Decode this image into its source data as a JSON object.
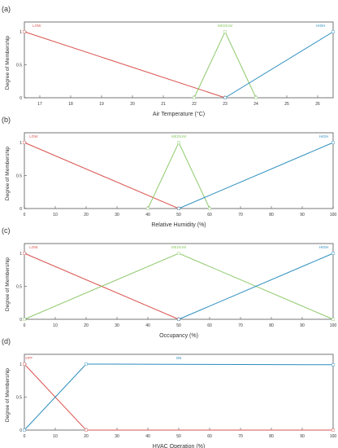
{
  "colors": {
    "low": "#d9534f",
    "medium": "#8dc96b",
    "high": "#2a8cbf",
    "axis": "#555555",
    "text": "#333333"
  },
  "chart_data": [
    {
      "type": "line",
      "panel_label": "(a)",
      "xlabel": "Air Temperature (°C)",
      "ylabel": "Degree of Membership",
      "xlim": [
        16.5,
        26.5
      ],
      "ylim": [
        0,
        1
      ],
      "xticks": [
        17,
        18,
        19,
        20,
        21,
        22,
        23,
        24,
        25,
        26
      ],
      "yticks": [
        0,
        0.5,
        1
      ],
      "series": [
        {
          "name": "LOW",
          "color_key": "low",
          "x": [
            16.5,
            23
          ],
          "y": [
            1,
            0
          ]
        },
        {
          "name": "MEDIUM",
          "color_key": "medium",
          "x": [
            22,
            23,
            24
          ],
          "y": [
            0,
            1,
            0
          ]
        },
        {
          "name": "HIGH",
          "color_key": "high",
          "x": [
            23,
            26.5
          ],
          "y": [
            0,
            1
          ]
        }
      ],
      "labels": [
        {
          "text": "LOW",
          "color_key": "low",
          "x": 16.9
        },
        {
          "text": "MEDIUM",
          "color_key": "medium",
          "x": 23
        },
        {
          "text": "HIGH",
          "color_key": "high",
          "x": 26.1
        }
      ]
    },
    {
      "type": "line",
      "panel_label": "(b)",
      "xlabel": "Relative Humidity (%)",
      "ylabel": "Degree of Membership",
      "xlim": [
        0,
        100
      ],
      "ylim": [
        0,
        1
      ],
      "xticks": [
        0,
        10,
        20,
        30,
        40,
        50,
        60,
        70,
        80,
        90,
        100
      ],
      "yticks": [
        0,
        0.5,
        1
      ],
      "series": [
        {
          "name": "LOW",
          "color_key": "low",
          "x": [
            0,
            50
          ],
          "y": [
            1,
            0
          ]
        },
        {
          "name": "MEDIUM",
          "color_key": "medium",
          "x": [
            40,
            50,
            60
          ],
          "y": [
            0,
            1,
            0
          ]
        },
        {
          "name": "HIGH",
          "color_key": "high",
          "x": [
            50,
            100
          ],
          "y": [
            0,
            1
          ]
        }
      ],
      "labels": [
        {
          "text": "LOW",
          "color_key": "low",
          "x": 3
        },
        {
          "text": "MEDIUM",
          "color_key": "medium",
          "x": 50
        },
        {
          "text": "HIGH",
          "color_key": "high",
          "x": 97
        }
      ]
    },
    {
      "type": "line",
      "panel_label": "(c)",
      "xlabel": "Occupancy (%)",
      "ylabel": "Degree of Membership",
      "xlim": [
        0,
        100
      ],
      "ylim": [
        0,
        1
      ],
      "xticks": [
        0,
        10,
        20,
        30,
        40,
        50,
        60,
        70,
        80,
        90,
        100
      ],
      "yticks": [
        0,
        0.5,
        1
      ],
      "series": [
        {
          "name": "LOW",
          "color_key": "low",
          "x": [
            0,
            50
          ],
          "y": [
            1,
            0
          ]
        },
        {
          "name": "MEDIUM",
          "color_key": "medium",
          "x": [
            0,
            50,
            100
          ],
          "y": [
            0,
            1,
            0
          ]
        },
        {
          "name": "HIGH",
          "color_key": "high",
          "x": [
            50,
            100
          ],
          "y": [
            0,
            1
          ]
        }
      ],
      "labels": [
        {
          "text": "LOW",
          "color_key": "low",
          "x": 3
        },
        {
          "text": "MEDIUM",
          "color_key": "medium",
          "x": 50
        },
        {
          "text": "HIGH",
          "color_key": "high",
          "x": 97
        }
      ]
    },
    {
      "type": "line",
      "panel_label": "(d)",
      "xlabel": "HVAC Operation (%)",
      "ylabel": "Degree of Membership",
      "xlim": [
        0,
        100
      ],
      "ylim": [
        0,
        1
      ],
      "xticks": [
        0,
        10,
        20,
        30,
        40,
        50,
        60,
        70,
        80,
        90,
        100
      ],
      "yticks": [
        0,
        0.5,
        1
      ],
      "series": [
        {
          "name": "OFF",
          "color_key": "low",
          "x": [
            0,
            20,
            100
          ],
          "y": [
            1,
            0,
            0
          ]
        },
        {
          "name": "ON",
          "color_key": "high",
          "x": [
            0,
            20,
            100
          ],
          "y": [
            0,
            1,
            0.99
          ]
        }
      ],
      "labels": [
        {
          "text": "OFF",
          "color_key": "low",
          "x": 1.5
        },
        {
          "text": "ON",
          "color_key": "high",
          "x": 50
        }
      ]
    }
  ]
}
